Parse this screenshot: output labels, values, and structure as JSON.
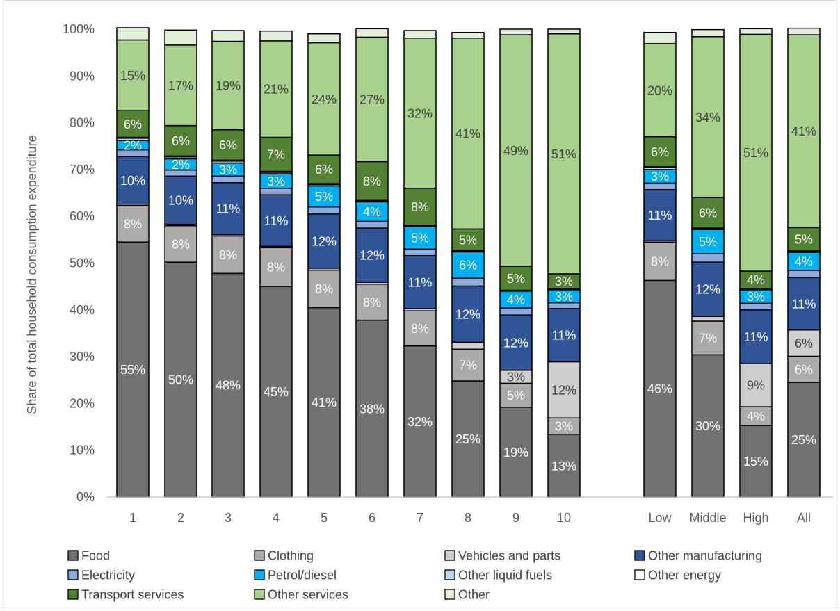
{
  "chart_data": {
    "type": "bar",
    "stacked": true,
    "percent": true,
    "title": "",
    "xlabel": "",
    "ylabel": "Share of total household consumption expenditure",
    "ylim": [
      0,
      100
    ],
    "yticks": [
      "0%",
      "10%",
      "20%",
      "30%",
      "40%",
      "50%",
      "60%",
      "70%",
      "80%",
      "90%",
      "100%"
    ],
    "grid": false,
    "legend_position": "bottom",
    "categories": [
      "1",
      "2",
      "3",
      "4",
      "5",
      "6",
      "7",
      "8",
      "9",
      "10",
      "Low",
      "Middle",
      "High",
      "All"
    ],
    "series": [
      {
        "name": "Food",
        "color": "#767171",
        "label_color": "#ffffff",
        "values": [
          54.5,
          50.2,
          47.8,
          45.0,
          40.5,
          37.8,
          32.3,
          24.8,
          19.2,
          13.4,
          46.3,
          30.4,
          15.3,
          24.5
        ]
      },
      {
        "name": "Clothing",
        "color": "#aeaaaa",
        "label_color": "#ffffff",
        "values": [
          7.8,
          7.8,
          8.0,
          8.3,
          8.0,
          7.7,
          7.5,
          6.8,
          5.1,
          3.5,
          8.2,
          7.2,
          4.0,
          5.6
        ]
      },
      {
        "name": "Vehicles and parts",
        "color": "#d0cece",
        "label_color": "#404040",
        "values": [
          0.3,
          0.3,
          0.3,
          0.3,
          0.4,
          0.4,
          0.5,
          1.5,
          2.8,
          12.0,
          0.3,
          1.0,
          9.2,
          5.6
        ]
      },
      {
        "name": "Other manufacturing",
        "color": "#2f5597",
        "label_color": "#ffffff",
        "values": [
          10.2,
          10.3,
          11.1,
          11.0,
          11.6,
          11.6,
          11.3,
          12.0,
          11.8,
          11.4,
          10.9,
          11.6,
          11.5,
          11.2
        ]
      },
      {
        "name": "Electricity",
        "color": "#8faadc",
        "label_color": "#ffffff",
        "values": [
          1.4,
          1.3,
          1.4,
          1.4,
          1.5,
          1.4,
          1.4,
          1.7,
          1.5,
          1.2,
          1.4,
          1.8,
          1.4,
          1.5
        ]
      },
      {
        "name": "Petrol/diesel",
        "color": "#00b0f0",
        "label_color": "#ffffff",
        "values": [
          2.0,
          2.4,
          2.8,
          3.1,
          4.5,
          4.2,
          4.8,
          5.6,
          3.6,
          2.8,
          2.9,
          5.2,
          2.9,
          3.9
        ]
      },
      {
        "name": "Other liquid fuels",
        "color": "#bdd7ee",
        "label_color": "#404040",
        "values": [
          0.5,
          0.4,
          0.4,
          0.3,
          0.3,
          0.2,
          0.2,
          0.2,
          0.1,
          0.1,
          0.4,
          0.2,
          0.1,
          0.2
        ]
      },
      {
        "name": "Other energy",
        "color": "#ffffff",
        "label_color": "#404040",
        "values": [
          0.2,
          0.2,
          0.2,
          0.2,
          0.2,
          0.1,
          0.1,
          0.1,
          0.1,
          0.1,
          0.2,
          0.1,
          0.1,
          0.1
        ]
      },
      {
        "name": "Transport services",
        "color": "#548235",
        "label_color": "#ffffff",
        "values": [
          5.7,
          6.5,
          6.5,
          7.3,
          6.1,
          8.3,
          7.9,
          4.6,
          5.1,
          3.2,
          6.4,
          6.5,
          3.8,
          5.0
        ]
      },
      {
        "name": "Other services",
        "color": "#a9d18e",
        "label_color": "#404040",
        "values": [
          15.1,
          17.2,
          18.9,
          20.6,
          24.0,
          26.6,
          32.1,
          40.8,
          49.5,
          51.3,
          19.9,
          34.4,
          50.6,
          41.2
        ]
      },
      {
        "name": "Other",
        "color": "#e2f0d9",
        "label_color": "#404040",
        "values": [
          2.6,
          3.2,
          2.3,
          2.1,
          1.9,
          1.8,
          1.6,
          1.2,
          1.2,
          1.0,
          2.4,
          1.5,
          1.2,
          1.4
        ]
      }
    ],
    "data_labels": {
      "Food": [
        "55%",
        "50%",
        "48%",
        "45%",
        "41%",
        "38%",
        "32%",
        "25%",
        "19%",
        "13%",
        "46%",
        "30%",
        "15%",
        "25%"
      ],
      "Clothing": [
        "8%",
        "8%",
        "8%",
        "8%",
        "8%",
        "8%",
        "8%",
        "7%",
        "5%",
        "3%",
        "8%",
        "7%",
        "4%",
        "6%"
      ],
      "Vehicles and parts": [
        "",
        "",
        "",
        "",
        "",
        "",
        "",
        "",
        "3%",
        "12%",
        "",
        "",
        "9%",
        "6%"
      ],
      "Other manufacturing": [
        "10%",
        "10%",
        "11%",
        "11%",
        "12%",
        "12%",
        "11%",
        "12%",
        "12%",
        "11%",
        "11%",
        "12%",
        "11%",
        "11%"
      ],
      "Petrol/diesel": [
        "2%",
        "2%",
        "3%",
        "3%",
        "5%",
        "4%",
        "5%",
        "6%",
        "4%",
        "3%",
        "3%",
        "5%",
        "3%",
        "4%"
      ],
      "Transport services": [
        "6%",
        "6%",
        "6%",
        "7%",
        "6%",
        "8%",
        "8%",
        "5%",
        "5%",
        "3%",
        "6%",
        "6%",
        "4%",
        "5%"
      ],
      "Other services": [
        "15%",
        "17%",
        "19%",
        "21%",
        "24%",
        "27%",
        "32%",
        "41%",
        "49%",
        "51%",
        "20%",
        "34%",
        "51%",
        "41%"
      ]
    }
  }
}
